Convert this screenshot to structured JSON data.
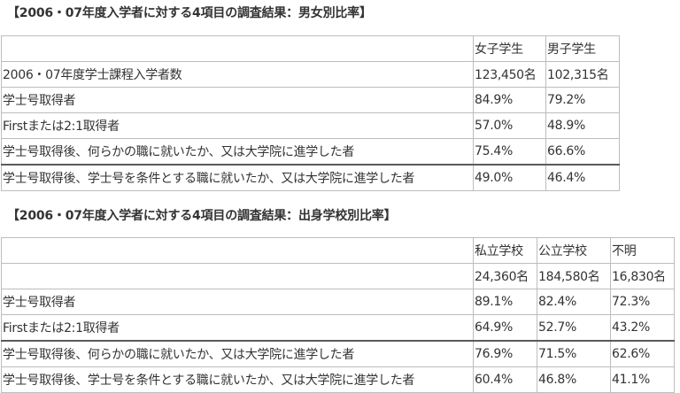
{
  "section1": {
    "heading": "【2006・07年度入学者に対する4項目の調査結果：男女別比率】",
    "columns": [
      "",
      "女子学生",
      "男子学生"
    ],
    "rows": [
      [
        "2006・07年度学士課程入学者数",
        "123,450名",
        "102,315名"
      ],
      [
        "学士号取得者",
        "84.9%",
        "79.2%"
      ],
      [
        "Firstまたは2:1取得者",
        "57.0%",
        "48.9%"
      ],
      [
        "学士号取得後、何らかの職に就いたか、又は大学院に進学した者",
        "75.4%",
        "66.6%"
      ],
      [
        "学士号取得後、学士号を条件とする職に就いたか、又は大学院に進学した者",
        "49.0%",
        "46.4%"
      ]
    ]
  },
  "section2": {
    "heading": "【2006・07年度入学者に対する4項目の調査結果：出身学校別比率】",
    "columns": [
      "",
      "私立学校",
      "公立学校",
      "不明"
    ],
    "rows": [
      [
        "",
        "24,360名",
        "184,580名",
        "16,830名"
      ],
      [
        "学士号取得者",
        "89.1%",
        "82.4%",
        "72.3%"
      ],
      [
        "Firstまたは2:1取得者",
        "64.9%",
        "52.7%",
        "43.2%"
      ],
      [
        "学士号取得後、何らかの職に就いたか、又は大学院に進学した者",
        "76.9%",
        "71.5%",
        "62.6%"
      ],
      [
        "学士号取得後、学士号を条件とする職に就いたか、又は大学院に進学した者",
        "60.4%",
        "46.8%",
        "41.1%"
      ]
    ]
  }
}
